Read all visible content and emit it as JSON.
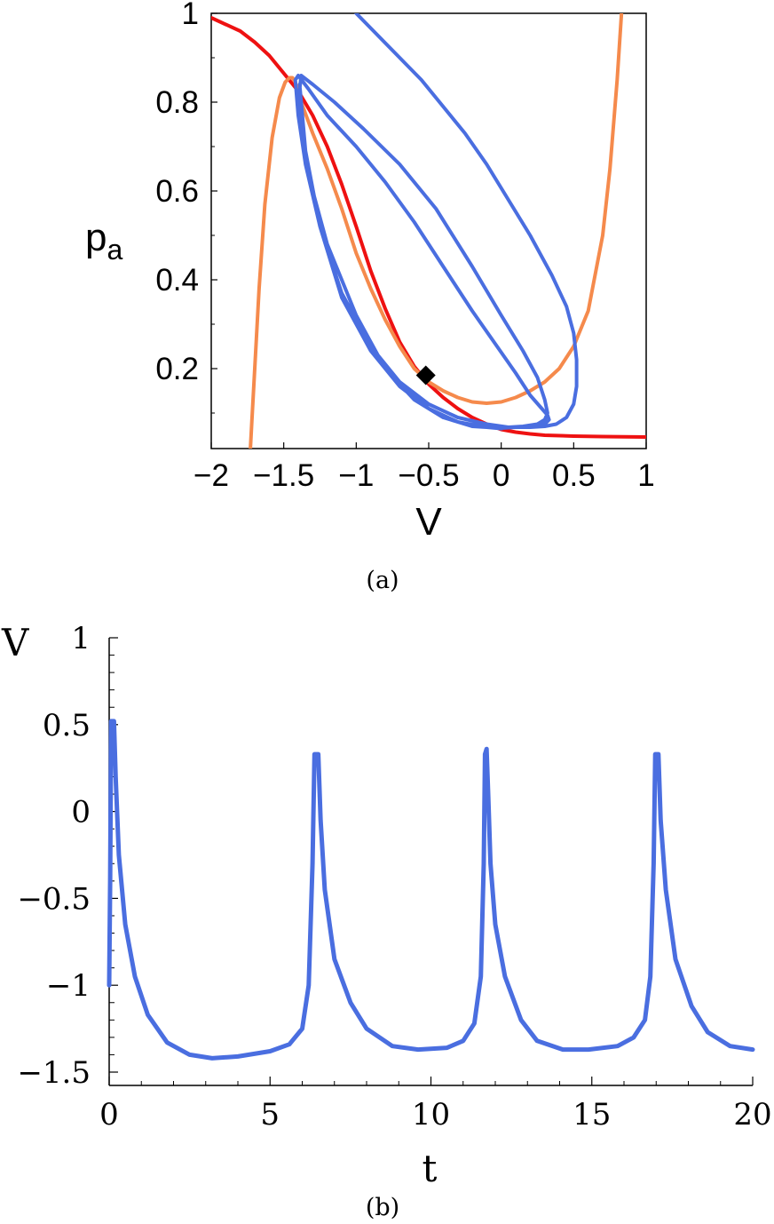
{
  "colors": {
    "red": "#ee1111",
    "orange": "#f58a4c",
    "blue": "#4a6ee0",
    "marker": "#000000"
  },
  "panel_a": {
    "caption": "(a)",
    "xlabel": "V",
    "ylabel_main": "p",
    "ylabel_sub": "a",
    "x_ticks": [
      "−2",
      "−1.5",
      "−1",
      "−0.5",
      "0",
      "0.5",
      "1"
    ],
    "y_ticks": [
      "0.2",
      "0.4",
      "0.6",
      "0.8",
      "1"
    ]
  },
  "panel_b": {
    "caption": "(b)",
    "xlabel": "t",
    "ylabel": "V",
    "x_ticks": [
      "0",
      "5",
      "10",
      "15",
      "20"
    ],
    "y_ticks": [
      "1",
      "0.5",
      "0",
      "−0.5",
      "−1",
      "−1.5"
    ]
  },
  "chart_data": [
    {
      "type": "line",
      "xlabel": "V",
      "ylabel": "p_a",
      "xlim": [
        -2,
        1
      ],
      "ylim": [
        0.02,
        1
      ],
      "grid": false,
      "series": [
        {
          "color": "#ee1111",
          "x": [
            -2,
            -1.9,
            -1.8,
            -1.7,
            -1.6,
            -1.5,
            -1.4,
            -1.3,
            -1.2,
            -1.1,
            -1.0,
            -0.9,
            -0.8,
            -0.7,
            -0.6,
            -0.5,
            -0.4,
            -0.3,
            -0.2,
            -0.1,
            0,
            0.1,
            0.2,
            0.3,
            0.5,
            0.7,
            1.0
          ],
          "y": [
            0.99,
            0.975,
            0.96,
            0.935,
            0.905,
            0.865,
            0.825,
            0.77,
            0.7,
            0.615,
            0.52,
            0.42,
            0.335,
            0.26,
            0.205,
            0.165,
            0.135,
            0.11,
            0.09,
            0.075,
            0.063,
            0.057,
            0.053,
            0.05,
            0.048,
            0.047,
            0.046
          ]
        },
        {
          "color": "#f58a4c",
          "x": [
            -1.73,
            -1.72,
            -1.7,
            -1.67,
            -1.63,
            -1.58,
            -1.53,
            -1.49,
            -1.46,
            -1.44,
            -1.42,
            -1.38,
            -1.3,
            -1.2,
            -1.1,
            -1.0,
            -0.9,
            -0.8,
            -0.7,
            -0.6,
            -0.5,
            -0.4,
            -0.3,
            -0.2,
            -0.1,
            0,
            0.1,
            0.2,
            0.3,
            0.4,
            0.5,
            0.6,
            0.7,
            0.75,
            0.8,
            0.83
          ],
          "y": [
            0.02,
            0.08,
            0.2,
            0.38,
            0.57,
            0.72,
            0.81,
            0.845,
            0.855,
            0.855,
            0.845,
            0.8,
            0.73,
            0.65,
            0.56,
            0.46,
            0.38,
            0.31,
            0.25,
            0.2,
            0.17,
            0.15,
            0.135,
            0.125,
            0.122,
            0.125,
            0.135,
            0.15,
            0.17,
            0.2,
            0.25,
            0.33,
            0.5,
            0.65,
            0.85,
            1.0
          ]
        },
        {
          "color": "#4a6ee0",
          "x": [
            -1.0,
            -0.85,
            -0.7,
            -0.55,
            -0.4,
            -0.25,
            -0.1,
            0.05,
            0.2,
            0.35,
            0.45,
            0.5,
            0.52,
            0.52,
            0.5,
            0.45,
            0.38,
            0.3,
            0.2,
            0.05,
            -0.1,
            -0.3,
            -0.5,
            -0.7,
            -0.9,
            -1.1,
            -1.25,
            -1.35,
            -1.4,
            -1.42,
            -1.4,
            -1.33,
            -1.2,
            -1.0,
            -0.8,
            -0.6,
            -0.4,
            -0.2,
            -0.05,
            0.1,
            0.2,
            0.28,
            0.32,
            0.33,
            0.31,
            0.27,
            0.2,
            0.1,
            0,
            -0.2,
            -0.4,
            -0.6,
            -0.8,
            -1.0,
            -1.2,
            -1.35,
            -1.4,
            -1.38,
            -1.3,
            -1.15,
            -0.95,
            -0.7,
            -0.45,
            -0.2,
            0,
            0.15,
            0.25,
            0.3,
            0.32,
            0.3,
            0.25,
            0.15,
            0.05,
            0,
            -0.1,
            -0.3,
            -0.5,
            -0.7,
            -0.9,
            -1.1,
            -1.25,
            -1.35,
            -1.39
          ],
          "y": [
            1.0,
            0.95,
            0.9,
            0.85,
            0.79,
            0.73,
            0.66,
            0.58,
            0.5,
            0.41,
            0.34,
            0.28,
            0.22,
            0.16,
            0.12,
            0.09,
            0.075,
            0.07,
            0.068,
            0.068,
            0.075,
            0.09,
            0.12,
            0.17,
            0.25,
            0.37,
            0.52,
            0.66,
            0.77,
            0.85,
            0.86,
            0.83,
            0.77,
            0.7,
            0.62,
            0.53,
            0.43,
            0.33,
            0.26,
            0.19,
            0.14,
            0.11,
            0.095,
            0.085,
            0.078,
            0.072,
            0.07,
            0.068,
            0.066,
            0.07,
            0.09,
            0.13,
            0.2,
            0.32,
            0.48,
            0.66,
            0.8,
            0.86,
            0.84,
            0.8,
            0.74,
            0.66,
            0.56,
            0.43,
            0.32,
            0.24,
            0.18,
            0.13,
            0.1,
            0.085,
            0.075,
            0.07,
            0.068,
            0.065,
            0.068,
            0.08,
            0.11,
            0.16,
            0.24,
            0.36,
            0.52,
            0.69,
            0.84
          ]
        }
      ],
      "markers": [
        {
          "shape": "diamond",
          "x": -0.52,
          "y": 0.185,
          "color": "#000000"
        }
      ]
    },
    {
      "type": "line",
      "xlabel": "t",
      "ylabel": "V",
      "xlim": [
        0,
        20
      ],
      "ylim": [
        -1.6,
        1
      ],
      "grid": false,
      "series": [
        {
          "color": "#4a6ee0",
          "x": [
            0,
            0.03,
            0.06,
            0.1,
            0.15,
            0.2,
            0.3,
            0.5,
            0.8,
            1.2,
            1.8,
            2.5,
            3.2,
            4.0,
            5.0,
            5.6,
            6.0,
            6.2,
            6.32,
            6.38,
            6.45,
            6.5,
            6.57,
            6.7,
            7.0,
            7.5,
            8.0,
            8.8,
            9.6,
            10.5,
            11.0,
            11.35,
            11.55,
            11.64,
            11.68,
            11.73,
            11.78,
            11.85,
            12.0,
            12.3,
            12.8,
            13.3,
            14.1,
            14.9,
            15.8,
            16.3,
            16.65,
            16.82,
            16.92,
            16.97,
            17.02,
            17.07,
            17.14,
            17.3,
            17.6,
            18.1,
            18.6,
            19.3,
            20.0
          ],
          "y": [
            -1.0,
            -0.4,
            0.52,
            0.52,
            0.52,
            0.2,
            -0.25,
            -0.65,
            -0.95,
            -1.17,
            -1.33,
            -1.4,
            -1.42,
            -1.41,
            -1.38,
            -1.34,
            -1.25,
            -1.0,
            -0.3,
            0.33,
            0.33,
            0.33,
            -0.05,
            -0.45,
            -0.85,
            -1.1,
            -1.25,
            -1.35,
            -1.37,
            -1.36,
            -1.32,
            -1.22,
            -0.95,
            -0.3,
            0.33,
            0.36,
            0.1,
            -0.3,
            -0.65,
            -0.95,
            -1.2,
            -1.32,
            -1.37,
            -1.37,
            -1.35,
            -1.3,
            -1.2,
            -0.95,
            -0.3,
            0.33,
            0.33,
            0.33,
            -0.05,
            -0.45,
            -0.85,
            -1.12,
            -1.27,
            -1.35,
            -1.37
          ]
        }
      ]
    }
  ]
}
